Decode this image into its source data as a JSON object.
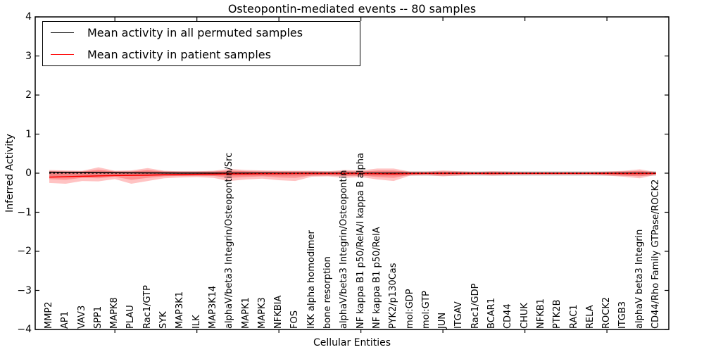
{
  "chart_data": {
    "type": "line",
    "title": "Osteopontin-mediated events -- 80 samples",
    "xlabel": "Cellular Entities",
    "ylabel": "Inferred Activity",
    "ylim": [
      -4,
      4
    ],
    "ytick_values": [
      4,
      3,
      2,
      1,
      0,
      -1,
      -2,
      -3,
      -4
    ],
    "ytick_labels": [
      "4",
      "3",
      "2",
      "1",
      "0",
      "−1",
      "−2",
      "−3",
      "−4"
    ],
    "xtick_sparse_indices": [
      4,
      9,
      14,
      19,
      24,
      29,
      34
    ],
    "grid": false,
    "legend": {
      "position": "upper left",
      "entries": [
        {
          "label": "Mean activity in all permuted samples",
          "color": "#000000"
        },
        {
          "label": "Mean activity in patient samples",
          "color": "#ff0000"
        }
      ]
    },
    "categories": [
      "MMP2",
      "AP1",
      "VAV3",
      "SPP1",
      "MAPK8",
      "PLAU",
      "Rac1/GTP",
      "SYK",
      "MAP3K1",
      "ILK",
      "MAP3K14",
      "alphaV/beta3 Integrin/Osteopontin/Src",
      "MAPK1",
      "MAPK3",
      "NFKBIA",
      "FOS",
      "IKK alpha homodimer",
      "bone resorption",
      "alphaV/beta3 Integrin/Osteopontin",
      "NF kappa B1 p50/RelA/I kappa B alpha",
      "NF kappa B1 p50/RelA",
      "PYK2/p130Cas",
      "mol:GDP",
      "mol:GTP",
      "JUN",
      "ITGAV",
      "Rac1/GDP",
      "BCAR1",
      "CD44",
      "CHUK",
      "NFKB1",
      "PTK2B",
      "RAC1",
      "RELA",
      "ROCK2",
      "ITGB3",
      "alphaV beta3 Integrin",
      "CD44/Rho Family GTPase/ROCK2"
    ],
    "series": [
      {
        "name": "Mean activity in all permuted samples",
        "color": "#000000",
        "style": "solid",
        "values": [
          0.025,
          0.02,
          0.02,
          0.015,
          0.012,
          0.01,
          0.008,
          0.006,
          0.004,
          0.003,
          0.002,
          0.002,
          0.001,
          0.001,
          0,
          0,
          0,
          0,
          0,
          0,
          0,
          0,
          0,
          0,
          0,
          0,
          0,
          0,
          0,
          0,
          0,
          0,
          0,
          0,
          0,
          0,
          0,
          0
        ]
      },
      {
        "name": "Mean activity in patient samples",
        "color": "#ff0000",
        "style": "solid",
        "values": [
          -0.1,
          -0.09,
          -0.08,
          -0.07,
          -0.06,
          -0.055,
          -0.05,
          -0.04,
          -0.035,
          -0.03,
          -0.025,
          -0.02,
          -0.02,
          -0.015,
          -0.015,
          -0.01,
          -0.01,
          -0.01,
          -0.01,
          -0.01,
          -0.015,
          -0.02,
          -0.01,
          -0.005,
          -0.005,
          -0.005,
          -0.005,
          -0.005,
          -0.005,
          -0.005,
          -0.005,
          -0.005,
          -0.005,
          -0.005,
          -0.005,
          -0.01,
          -0.01,
          -0.005
        ]
      }
    ],
    "bands": [
      {
        "name": "permuted-samples-range",
        "color": "rgba(0,0,0,0.12)",
        "upper_const": 0.055,
        "lower_const": -0.07
      },
      {
        "name": "patient-samples-range-outer",
        "color": "rgba(255,35,35,0.27)",
        "upper": [
          0.08,
          0.07,
          0.06,
          0.15,
          0.06,
          0.07,
          0.13,
          0.06,
          0.05,
          0.05,
          0.06,
          0.11,
          0.08,
          0.07,
          0.06,
          0.06,
          0.06,
          0.05,
          0.08,
          0.07,
          0.12,
          0.12,
          0.04,
          0.04,
          0.07,
          0.05,
          0.03,
          0.05,
          0.04,
          0.03,
          0.03,
          0.03,
          0.03,
          0.03,
          0.04,
          0.06,
          0.1,
          0.03
        ],
        "lower": [
          -0.25,
          -0.27,
          -0.2,
          -0.21,
          -0.15,
          -0.27,
          -0.2,
          -0.13,
          -0.11,
          -0.1,
          -0.12,
          -0.2,
          -0.16,
          -0.14,
          -0.18,
          -0.2,
          -0.09,
          -0.08,
          -0.12,
          -0.1,
          -0.16,
          -0.2,
          -0.06,
          -0.05,
          -0.08,
          -0.06,
          -0.04,
          -0.06,
          -0.05,
          -0.04,
          -0.04,
          -0.04,
          -0.04,
          -0.04,
          -0.06,
          -0.09,
          -0.13,
          -0.04
        ]
      },
      {
        "name": "patient-samples-range-inner",
        "color": "rgba(255,35,35,0.30)",
        "upper": [
          0.05,
          0.04,
          0.04,
          0.09,
          0.04,
          0.04,
          0.08,
          0.04,
          0.03,
          0.03,
          0.04,
          0.07,
          0.05,
          0.04,
          0.04,
          0.04,
          0.04,
          0.03,
          0.05,
          0.04,
          0.07,
          0.07,
          0.03,
          0.02,
          0.04,
          0.03,
          0.02,
          0.03,
          0.02,
          0.02,
          0.02,
          0.02,
          0.02,
          0.02,
          0.03,
          0.04,
          0.06,
          0.02
        ],
        "lower": [
          -0.15,
          -0.17,
          -0.12,
          -0.13,
          -0.09,
          -0.17,
          -0.12,
          -0.08,
          -0.07,
          -0.06,
          -0.07,
          -0.12,
          -0.1,
          -0.08,
          -0.11,
          -0.12,
          -0.06,
          -0.05,
          -0.07,
          -0.06,
          -0.1,
          -0.12,
          -0.04,
          -0.03,
          -0.05,
          -0.04,
          -0.03,
          -0.04,
          -0.03,
          -0.03,
          -0.03,
          -0.03,
          -0.03,
          -0.03,
          -0.04,
          -0.06,
          -0.08,
          -0.03
        ]
      }
    ],
    "zero_line": {
      "value": 0,
      "style": "dashed",
      "color": "#000000"
    },
    "frame_color": "#000000",
    "background_color": "#ffffff"
  }
}
